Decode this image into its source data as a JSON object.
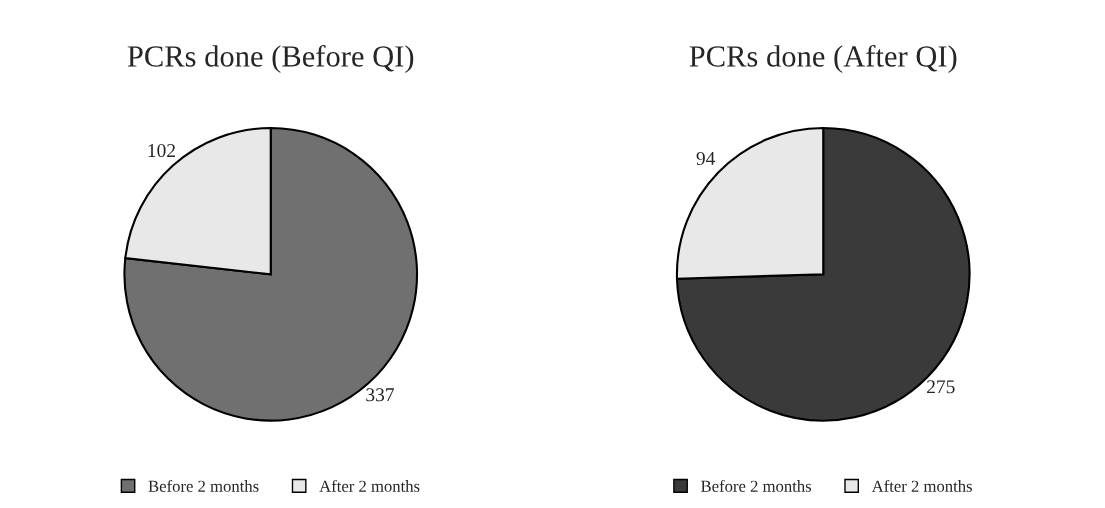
{
  "chart_data": [
    {
      "type": "pie",
      "title": "PCRs done (Before QI)",
      "categories": [
        "Before 2 months",
        "After 2 months"
      ],
      "values": [
        337,
        102
      ],
      "colors": [
        "#707070",
        "#e8e8e8"
      ],
      "data_labels": true,
      "legend": "bottom"
    },
    {
      "type": "pie",
      "title": "PCRs done (After QI)",
      "categories": [
        "Before 2 months",
        "After 2 months"
      ],
      "values": [
        275,
        94
      ],
      "colors": [
        "#3a3a3a",
        "#e8e8e8"
      ],
      "data_labels": true,
      "legend": "bottom"
    }
  ]
}
